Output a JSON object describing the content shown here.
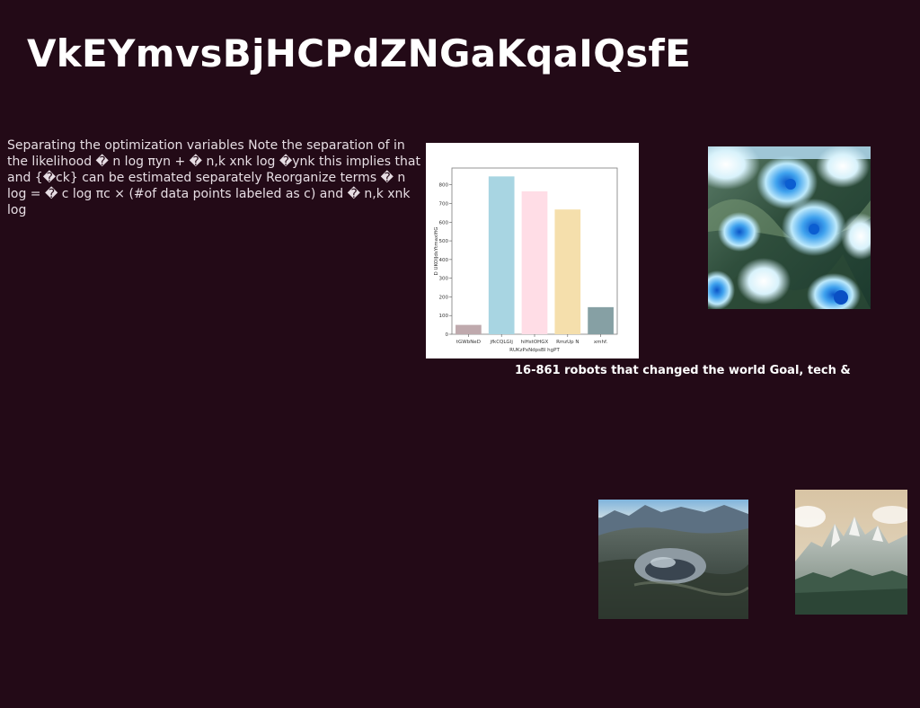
{
  "page": {
    "title": "VkEYmvsBjHCPdZNGaKqaIQsfE",
    "body_text": "Separating the optimization variables Note the separation of in the likelihood � n log πyn + � n,k xnk log �ynk this implies that and {�ck} can be estimated separately Reorganize terms � n log = � c log πc × (#of data points labeled as c) and � n,k xnk log",
    "caption": "16-861 robots that changed the world Goal, tech &",
    "background_color": "#230a17"
  },
  "images": {
    "flowers": "abstract blue and white flowers",
    "crater": "volcanic crater among mountains",
    "peaks": "snowy mountain peaks with pine forest"
  },
  "chart_data": {
    "type": "bar",
    "categories": [
      "tGWbNeD",
      "jfkCQLGIj",
      "hiHstOHGX",
      "RmzUp N",
      "xmhf."
    ],
    "values": [
      50,
      845,
      765,
      668,
      145
    ],
    "colors": [
      "#bfa9ad",
      "#a8d5e2",
      "#ffdde6",
      "#f5dfac",
      "#86a0a4"
    ],
    "xlabel": "RUKzPxNdpsBI hgPT",
    "ylabel": "D UKOlJdsYtmaxlfiG",
    "yticks": [
      0,
      100,
      200,
      300,
      400,
      500,
      600,
      700,
      800
    ],
    "ylim": [
      0,
      890
    ],
    "grid": false,
    "legend": "none"
  }
}
